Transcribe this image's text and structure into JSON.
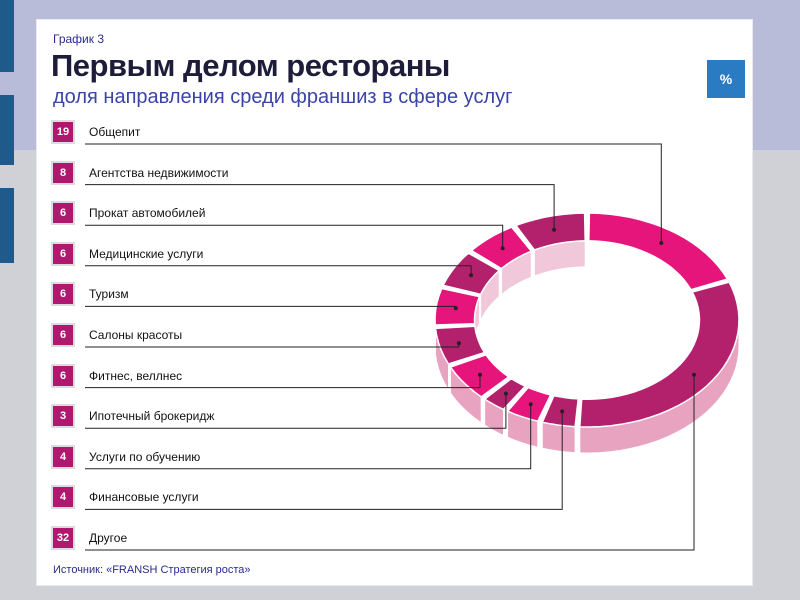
{
  "header": {
    "label": "График 3",
    "title": "Первым делом рестораны",
    "subtitle": "доля направления среди франшиз в сфере услуг",
    "unit_badge": "%"
  },
  "source": "Источник: «FRANSH Стратегия роста»",
  "colors": {
    "badge": "#b01870",
    "accent": "#2a7bc2",
    "ring_top_a": "#e6157c",
    "ring_top_b": "#b3216d",
    "ring_side": "#e7a3bf"
  },
  "chart_data": {
    "type": "pie",
    "style": "3d-donut",
    "unit": "%",
    "categories": [
      "Общепит",
      "Агентства недвижимости",
      "Прокат автомобилей",
      "Медицинские услуги",
      "Туризм",
      "Салоны красоты",
      "Фитнес, веллнес",
      "Ипотечный брокеридж",
      "Услуги по обучению",
      "Финансовые услуги",
      "Другое"
    ],
    "values": [
      19,
      8,
      6,
      6,
      6,
      6,
      6,
      3,
      4,
      4,
      32
    ],
    "value_labels": [
      "19",
      "8",
      "6",
      "6",
      "6",
      "6",
      "6",
      "3",
      "4",
      "4",
      "32"
    ]
  }
}
